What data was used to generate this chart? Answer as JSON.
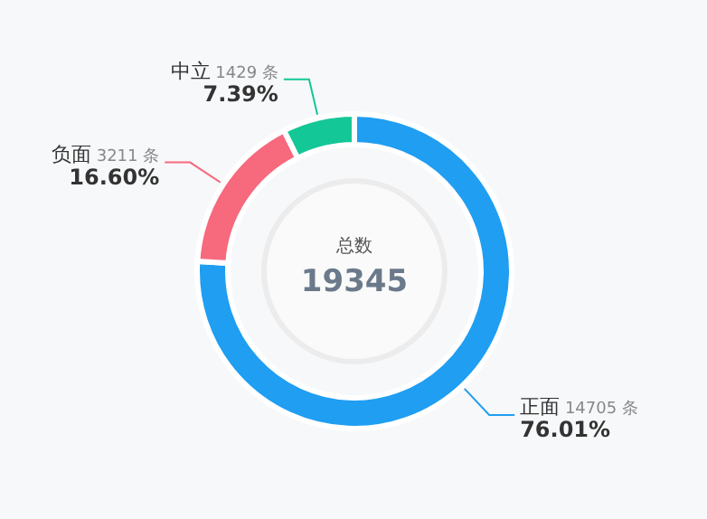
{
  "chart_data": {
    "type": "donut",
    "title": "总数",
    "subtitle": "19345",
    "categories": [
      "正面",
      "负面",
      "中立"
    ],
    "values": [
      14705,
      3211,
      1429
    ],
    "colors": [
      "#1f9ef2",
      "#f7697d",
      "#14c796"
    ],
    "value_labels": [
      "14705 条",
      "3211 条",
      "1429 条"
    ],
    "annotations": [
      "76.01%",
      "16.60%",
      "7.39%"
    ]
  }
}
